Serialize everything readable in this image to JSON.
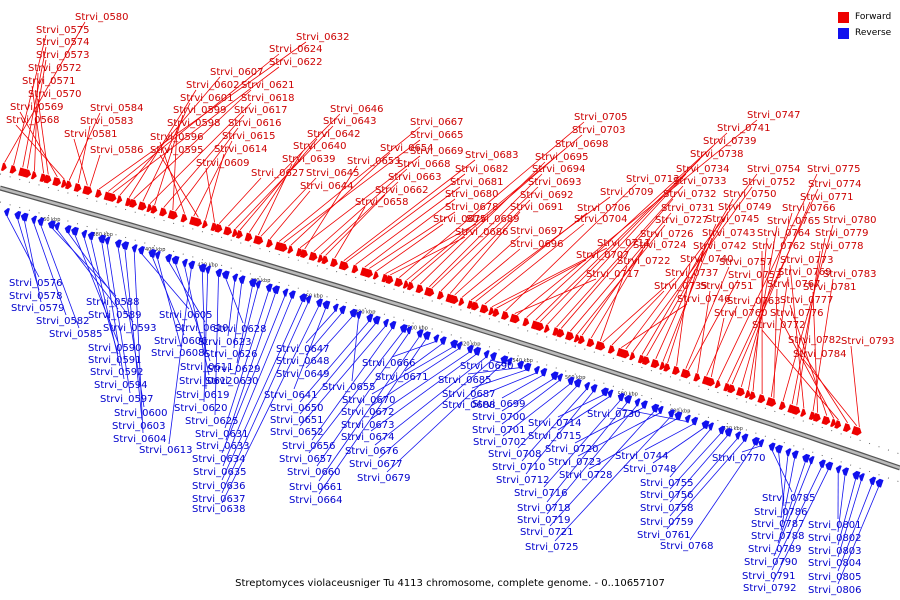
{
  "caption": "Streptomyces violaceusniger Tu 4113 chromosome, complete genome. - 0..10657107",
  "legend": [
    {
      "label": "Forward",
      "color": "#ee0000"
    },
    {
      "label": "Reverse",
      "color": "#1111ee"
    }
  ],
  "colors": {
    "forward": "#ee0000",
    "reverse": "#1111ee",
    "backbone": "#888888"
  },
  "ticks": [
    "360 kbp",
    "380 kbp",
    "400 kbp",
    "420 kbp",
    "440 kbp",
    "460 kbp",
    "480 kbp",
    "500 kbp",
    "520 kbp",
    "540 kbp",
    "560 kbp",
    "580 kbp",
    "600 kbp",
    "620 kbp"
  ],
  "forward_genes": [
    "Strvi_0580",
    "Strvi_0575",
    "Strvi_0574",
    "Strvi_0573",
    "Strvi_0572",
    "Strvi_0571",
    "Strvi_0570",
    "Strvi_0569",
    "Strvi_0568",
    "Strvi_0584",
    "Strvi_0583",
    "Strvi_0581",
    "Strvi_0586",
    "Strvi_0632",
    "Strvi_0624",
    "Strvi_0622",
    "Strvi_0607",
    "Strvi_0602",
    "Strvi_0621",
    "Strvi_0601",
    "Strvi_0618",
    "Strvi_0599",
    "Strvi_0617",
    "Strvi_0598",
    "Strvi_0616",
    "Strvi_0596",
    "Strvi_0615",
    "Strvi_0595",
    "Strvi_0614",
    "Strvi_0609",
    "Strvi_0627",
    "Strvi_0646",
    "Strvi_0643",
    "Strvi_0642",
    "Strvi_0640",
    "Strvi_0639",
    "Strvi_0645",
    "Strvi_0644",
    "Strvi_0667",
    "Strvi_0665",
    "Strvi_0654",
    "Strvi_0669",
    "Strvi_0653",
    "Strvi_0668",
    "Strvi_0663",
    "Strvi_0662",
    "Strvi_0658",
    "Strvi_0683",
    "Strvi_0682",
    "Strvi_0681",
    "Strvi_0680",
    "Strvi_0678",
    "Strvi_0675",
    "Strvi_0689",
    "Strvi_0686",
    "Strvi_0705",
    "Strvi_0703",
    "Strvi_0698",
    "Strvi_0695",
    "Strvi_0694",
    "Strvi_0693",
    "Strvi_0692",
    "Strvi_0691",
    "Strvi_0697",
    "Strvi_0696",
    "Strvi_0709",
    "Strvi_0706",
    "Strvi_0704",
    "Strvi_0711",
    "Strvi_0707",
    "Strvi_0713",
    "Strvi_0717",
    "Strvi_0747",
    "Strvi_0741",
    "Strvi_0739",
    "Strvi_0738",
    "Strvi_0734",
    "Strvi_0733",
    "Strvi_0732",
    "Strvi_0731",
    "Strvi_0727",
    "Strvi_0726",
    "Strvi_0724",
    "Strvi_0722",
    "Strvi_0737",
    "Strvi_0735",
    "Strvi_0746",
    "Strvi_0754",
    "Strvi_0752",
    "Strvi_0750",
    "Strvi_0749",
    "Strvi_0745",
    "Strvi_0743",
    "Strvi_0742",
    "Strvi_0740",
    "Strvi_0757",
    "Strvi_0753",
    "Strvi_0751",
    "Strvi_0763",
    "Strvi_0760",
    "Strvi_0775",
    "Strvi_0774",
    "Strvi_0771",
    "Strvi_0766",
    "Strvi_0765",
    "Strvi_0764",
    "Strvi_0762",
    "Strvi_0769",
    "Strvi_0767",
    "Strvi_0780",
    "Strvi_0779",
    "Strvi_0778",
    "Strvi_0773",
    "Strvi_0783",
    "Strvi_0781",
    "Strvi_0777",
    "Strvi_0776",
    "Strvi_0772",
    "Strvi_0782",
    "Strvi_0784",
    "Strvi_0793"
  ],
  "reverse_genes": [
    "Strvi_0576",
    "Strvi_0578",
    "Strvi_0579",
    "Strvi_0582",
    "Strvi_0585",
    "Strvi_0588",
    "Strvi_0589",
    "Strvi_0593",
    "Strvi_0590",
    "Strvi_0591",
    "Strvi_0592",
    "Strvi_0594",
    "Strvi_0597",
    "Strvi_0600",
    "Strvi_0603",
    "Strvi_0604",
    "Strvi_0605",
    "Strvi_0606",
    "Strvi_0608",
    "Strvi_0610",
    "Strvi_0611",
    "Strvi_0612",
    "Strvi_0613",
    "Strvi_0619",
    "Strvi_0620",
    "Strvi_0625",
    "Strvi_0628",
    "Strvi_0623",
    "Strvi_0626",
    "Strvi_0629",
    "Strvi_0630",
    "Strvi_0631",
    "Strvi_0633",
    "Strvi_0634",
    "Strvi_0635",
    "Strvi_0636",
    "Strvi_0637",
    "Strvi_0638",
    "Strvi_0641",
    "Strvi_0647",
    "Strvi_0648",
    "Strvi_0649",
    "Strvi_0655",
    "Strvi_0650",
    "Strvi_0651",
    "Strvi_0652",
    "Strvi_0656",
    "Strvi_0657",
    "Strvi_0660",
    "Strvi_0661",
    "Strvi_0664",
    "Strvi_0666",
    "Strvi_0671",
    "Strvi_0670",
    "Strvi_0672",
    "Strvi_0673",
    "Strvi_0674",
    "Strvi_0676",
    "Strvi_0677",
    "Strvi_0679",
    "Strvi_0690",
    "Strvi_0685",
    "Strvi_0687",
    "Strvi_0688",
    "Strvi_0699",
    "Strvi_0700",
    "Strvi_0701",
    "Strvi_0702",
    "Strvi_0708",
    "Strvi_0710",
    "Strvi_0712",
    "Strvi_0714",
    "Strvi_0715",
    "Strvi_0716",
    "Strvi_0718",
    "Strvi_0719",
    "Strvi_0720",
    "Strvi_0721",
    "Strvi_0723",
    "Strvi_0725",
    "Strvi_0728",
    "Strvi_0730",
    "Strvi_0744",
    "Strvi_0748",
    "Strvi_0755",
    "Strvi_0756",
    "Strvi_0758",
    "Strvi_0759",
    "Strvi_0761",
    "Strvi_0768",
    "Strvi_0770",
    "Strvi_0785",
    "Strvi_0786",
    "Strvi_0787",
    "Strvi_0788",
    "Strvi_0789",
    "Strvi_0790",
    "Strvi_0791",
    "Strvi_0792",
    "Strvi_0801",
    "Strvi_0802",
    "Strvi_0803",
    "Strvi_0804",
    "Strvi_0805",
    "Strvi_0806"
  ]
}
